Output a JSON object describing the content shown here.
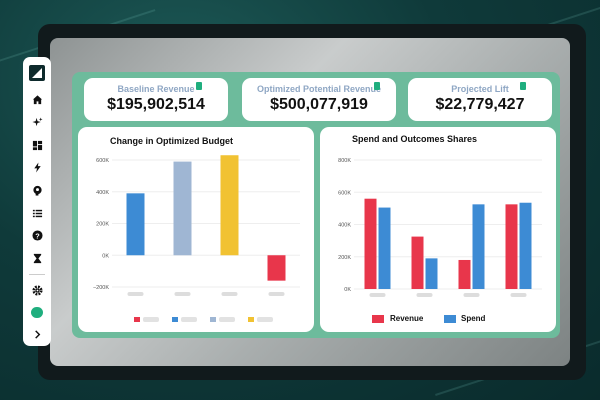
{
  "colors": {
    "accent_green": "#1fae7e",
    "panel_green": "#6dbb9c",
    "bar_blue": "#3d8bd4",
    "bar_lightblue": "#9fb6d3",
    "bar_yellow": "#f1c232",
    "bar_red": "#e8364b",
    "kpi_label": "#8fa7c4"
  },
  "sidebar": {
    "items": [
      {
        "icon": "home-icon"
      },
      {
        "icon": "sparkle-icon"
      },
      {
        "icon": "dashboard-icon"
      },
      {
        "icon": "lightning-icon"
      },
      {
        "icon": "brain-icon"
      },
      {
        "icon": "list-icon"
      },
      {
        "icon": "help-icon"
      },
      {
        "icon": "hourglass-icon"
      },
      {
        "icon": "settings-icon"
      },
      {
        "icon": "user-avatar-icon"
      },
      {
        "icon": "chevron-right-icon"
      }
    ]
  },
  "kpis": [
    {
      "label": "Baseline Revenue",
      "value": "$195,902,514"
    },
    {
      "label": "Optimized Potential Revenue",
      "value": "$500,077,919"
    },
    {
      "label": "Projected Lift",
      "value": "$22,779,427"
    }
  ],
  "chart_data": [
    {
      "type": "bar",
      "title": "Change in Optimized Budget",
      "yticks": [
        "600K",
        "400K",
        "200K",
        "0K",
        "−200K"
      ],
      "ylim": [
        -200000,
        600000
      ],
      "values": [
        390000,
        590000,
        630000,
        -160000
      ],
      "bar_colors": [
        "#3d8bd4",
        "#9fb6d3",
        "#f1c232",
        "#e8364b"
      ],
      "legend_colors": [
        "#e8364b",
        "#3d8bd4",
        "#9fb6d3",
        "#f1c232"
      ],
      "grid": true
    },
    {
      "type": "bar",
      "title": "Spend and Outcomes Shares",
      "yticks": [
        "800K",
        "600K",
        "400K",
        "200K",
        "0K"
      ],
      "ylim": [
        0,
        800000
      ],
      "series": [
        {
          "name": "Revenue",
          "color": "#e8364b",
          "values": [
            560000,
            325000,
            180000,
            525000
          ]
        },
        {
          "name": "Spend",
          "color": "#3d8bd4",
          "values": [
            505000,
            190000,
            525000,
            535000
          ]
        }
      ],
      "legend_placement": "bottom",
      "grid": true
    }
  ]
}
